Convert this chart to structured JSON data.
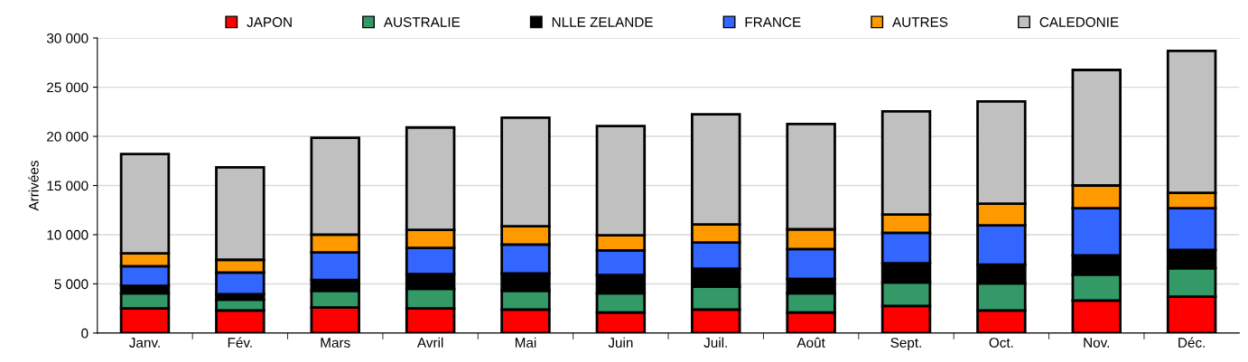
{
  "chart_data": {
    "type": "bar",
    "stacked": true,
    "ylabel": "Arrivées",
    "categories": [
      "Janv.",
      "Fév.",
      "Mars",
      "Avril",
      "Mai",
      "Juin",
      "Juil.",
      "Août",
      "Sept.",
      "Oct.",
      "Nov.",
      "Déc."
    ],
    "series": [
      {
        "name": "JAPON",
        "color": "#ff0000",
        "values": [
          2500,
          2300,
          2600,
          2500,
          2400,
          2100,
          2400,
          2100,
          2750,
          2300,
          3300,
          3700
        ]
      },
      {
        "name": "AUSTRALIE",
        "color": "#339966",
        "values": [
          1550,
          1100,
          1700,
          2000,
          1900,
          1950,
          2300,
          1950,
          2400,
          2750,
          2650,
          2900
        ]
      },
      {
        "name": "NLLE ZELANDE",
        "color": "#000000",
        "values": [
          750,
          550,
          1100,
          1500,
          1750,
          1850,
          1850,
          1450,
          1950,
          1900,
          1950,
          1850
        ]
      },
      {
        "name": "FRANCE",
        "color": "#3366ff",
        "values": [
          2000,
          2200,
          2800,
          2650,
          2950,
          2500,
          2650,
          3050,
          3100,
          4000,
          4800,
          4250
        ]
      },
      {
        "name": "AUTRES",
        "color": "#ff9900",
        "values": [
          1300,
          1300,
          1800,
          1850,
          1850,
          1550,
          1850,
          2000,
          1850,
          2200,
          2300,
          1550
        ]
      },
      {
        "name": "CALEDONIE",
        "color": "#c0c0c0",
        "values": [
          10100,
          9400,
          9850,
          10400,
          11050,
          11100,
          11200,
          10700,
          10500,
          10400,
          11750,
          14450
        ]
      }
    ],
    "ylim": [
      0,
      30000
    ],
    "yticks": [
      {
        "value": 0,
        "label": "0"
      },
      {
        "value": 5000,
        "label": "5 000"
      },
      {
        "value": 10000,
        "label": "10 000"
      },
      {
        "value": 15000,
        "label": "15 000"
      },
      {
        "value": 20000,
        "label": "20 000"
      },
      {
        "value": 25000,
        "label": "25 000"
      },
      {
        "value": 30000,
        "label": "30 000"
      }
    ],
    "grid": "y",
    "legend": "top"
  }
}
